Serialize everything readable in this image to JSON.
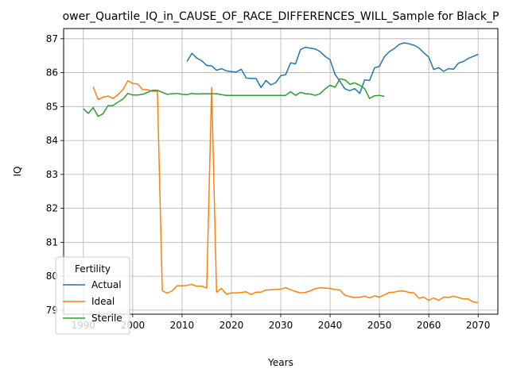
{
  "chart_data": {
    "type": "line",
    "title": "ower_Quartile_IQ_in_CAUSE_OF_RACE_DIFFERENCES_WILL_Sample for Black_P",
    "xlabel": "Years",
    "ylabel": "IQ",
    "xlim": [
      1986,
      2074
    ],
    "ylim": [
      78.88,
      87.3
    ],
    "x_ticks": [
      1990,
      2000,
      2010,
      2020,
      2030,
      2040,
      2050,
      2060,
      2070
    ],
    "y_ticks": [
      79,
      80,
      81,
      82,
      83,
      84,
      85,
      86,
      87
    ],
    "grid": true,
    "legend": {
      "title": "Fertility",
      "position": "lower-left"
    },
    "series": [
      {
        "name": "Actual",
        "color": "#1f77b4",
        "x": [
          2011,
          2012,
          2013,
          2014,
          2015,
          2016,
          2017,
          2018,
          2019,
          2020,
          2021,
          2022,
          2023,
          2024,
          2025,
          2026,
          2027,
          2028,
          2029,
          2030,
          2031,
          2032,
          2033,
          2034,
          2035,
          2036,
          2037,
          2038,
          2039,
          2040,
          2041,
          2042,
          2043,
          2044,
          2045,
          2046,
          2047,
          2048,
          2049,
          2050,
          2051,
          2052,
          2053,
          2054,
          2055,
          2056,
          2057,
          2058,
          2059,
          2060,
          2061,
          2062,
          2063,
          2064,
          2065,
          2066,
          2067,
          2068,
          2069,
          2070
        ],
        "values": [
          86.33,
          86.57,
          86.43,
          86.35,
          86.21,
          86.2,
          86.07,
          86.12,
          86.05,
          86.03,
          86.02,
          86.1,
          85.84,
          85.83,
          85.83,
          85.56,
          85.77,
          85.64,
          85.71,
          85.91,
          85.94,
          86.29,
          86.26,
          86.68,
          86.75,
          86.72,
          86.7,
          86.62,
          86.48,
          86.38,
          85.95,
          85.74,
          85.52,
          85.47,
          85.53,
          85.39,
          85.79,
          85.77,
          86.14,
          86.19,
          86.47,
          86.62,
          86.71,
          86.83,
          86.88,
          86.85,
          86.81,
          86.73,
          86.59,
          86.46,
          86.09,
          86.15,
          86.04,
          86.12,
          86.1,
          86.28,
          86.33,
          86.42,
          86.48,
          86.54
        ]
      },
      {
        "name": "Ideal",
        "color": "#ff7f0e",
        "x": [
          1992,
          1993,
          1994,
          1995,
          1996,
          1997,
          1998,
          1999,
          2000,
          2001,
          2002,
          2003,
          2004,
          2005,
          2006,
          2007,
          2008,
          2009,
          2010,
          2011,
          2012,
          2013,
          2014,
          2015,
          2016,
          2017,
          2018,
          2019,
          2020,
          2021,
          2022,
          2023,
          2024,
          2025,
          2026,
          2027,
          2028,
          2029,
          2030,
          2031,
          2032,
          2033,
          2034,
          2035,
          2036,
          2037,
          2038,
          2039,
          2040,
          2041,
          2042,
          2043,
          2044,
          2045,
          2046,
          2047,
          2048,
          2049,
          2050,
          2051,
          2052,
          2053,
          2054,
          2055,
          2056,
          2057,
          2058,
          2059,
          2060,
          2061,
          2062,
          2063,
          2064,
          2065,
          2066,
          2067,
          2068,
          2069,
          2070
        ],
        "values": [
          85.58,
          85.21,
          85.28,
          85.31,
          85.24,
          85.35,
          85.5,
          85.76,
          85.68,
          85.67,
          85.5,
          85.5,
          85.45,
          85.45,
          79.57,
          79.5,
          79.57,
          79.72,
          79.72,
          79.73,
          79.76,
          79.7,
          79.71,
          79.65,
          85.56,
          79.53,
          79.64,
          79.47,
          79.51,
          79.51,
          79.52,
          79.54,
          79.46,
          79.53,
          79.53,
          79.59,
          79.6,
          79.61,
          79.62,
          79.66,
          79.6,
          79.55,
          79.51,
          79.52,
          79.57,
          79.63,
          79.66,
          79.65,
          79.64,
          79.61,
          79.59,
          79.44,
          79.4,
          79.37,
          79.38,
          79.41,
          79.36,
          79.42,
          79.38,
          79.45,
          79.52,
          79.53,
          79.56,
          79.56,
          79.52,
          79.51,
          79.35,
          79.38,
          79.29,
          79.36,
          79.29,
          79.38,
          79.37,
          79.41,
          79.37,
          79.33,
          79.33,
          79.24,
          79.22
        ]
      },
      {
        "name": "Sterile",
        "color": "#2ca02c",
        "x": [
          1990,
          1991,
          1992,
          1993,
          1994,
          1995,
          1996,
          1997,
          1998,
          1999,
          2000,
          2001,
          2002,
          2003,
          2004,
          2005,
          2006,
          2007,
          2008,
          2009,
          2010,
          2011,
          2012,
          2013,
          2014,
          2015,
          2016,
          2017,
          2018,
          2019,
          2020,
          2021,
          2022,
          2023,
          2024,
          2025,
          2026,
          2027,
          2028,
          2029,
          2030,
          2031,
          2032,
          2033,
          2034,
          2035,
          2036,
          2037,
          2038,
          2039,
          2040,
          2041,
          2042,
          2043,
          2044,
          2045,
          2046,
          2047,
          2048,
          2049,
          2050,
          2051
        ],
        "values": [
          84.94,
          84.8,
          84.97,
          84.71,
          84.79,
          85.03,
          85.03,
          85.13,
          85.22,
          85.39,
          85.34,
          85.34,
          85.36,
          85.42,
          85.48,
          85.48,
          85.42,
          85.36,
          85.38,
          85.39,
          85.36,
          85.35,
          85.39,
          85.37,
          85.38,
          85.38,
          85.38,
          85.38,
          85.35,
          85.33,
          85.33,
          85.33,
          85.33,
          85.33,
          85.33,
          85.33,
          85.33,
          85.33,
          85.33,
          85.33,
          85.33,
          85.33,
          85.44,
          85.33,
          85.42,
          85.38,
          85.37,
          85.33,
          85.38,
          85.52,
          85.63,
          85.57,
          85.82,
          85.79,
          85.66,
          85.7,
          85.63,
          85.53,
          85.24,
          85.32,
          85.33,
          85.3
        ]
      }
    ]
  }
}
